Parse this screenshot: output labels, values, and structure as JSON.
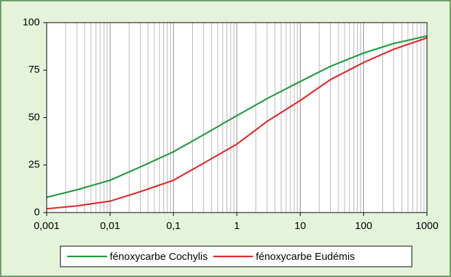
{
  "chart_data": {
    "type": "line",
    "log_x": true,
    "grid": "x",
    "legend": "bottom",
    "x": [
      0.001,
      0.003,
      0.01,
      0.03,
      0.1,
      0.3,
      1,
      3,
      10,
      30,
      100,
      300,
      1000
    ],
    "series": [
      {
        "name": "fénoxycarbe Cochylis",
        "color": "#1e9a3c",
        "values": [
          8,
          12,
          17,
          24,
          32,
          41,
          51,
          60,
          69,
          77,
          84,
          89,
          93
        ]
      },
      {
        "name": "fénoxycarbe Eudémis",
        "color": "#e02828",
        "values": [
          2,
          3.5,
          6,
          11,
          17,
          26,
          36,
          48,
          59,
          70,
          79,
          86,
          92
        ]
      }
    ],
    "xlim": [
      0.001,
      1000
    ],
    "xticks": [
      {
        "value": 0.001,
        "label": "0,001"
      },
      {
        "value": 0.01,
        "label": "0,01"
      },
      {
        "value": 0.1,
        "label": "0,1"
      },
      1,
      10,
      100,
      1000
    ],
    "ylim": [
      0,
      100
    ],
    "yticks": [
      0,
      25,
      50,
      75,
      100
    ]
  }
}
